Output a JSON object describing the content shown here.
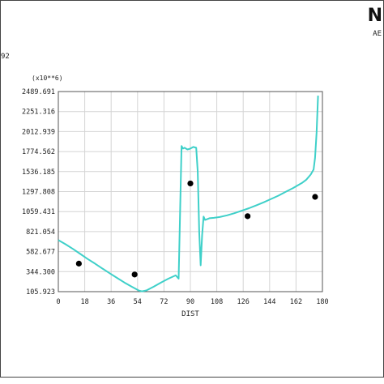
{
  "header": {
    "logo_text": "N",
    "subtitle_fragment": "AE",
    "left_number_fragment": "92"
  },
  "colors": {
    "curve": "#3fd0c9",
    "points": "#000000",
    "grid": "#d4d4d4",
    "axis": "#555555"
  },
  "chart_data": {
    "type": "line",
    "xlabel": "DIST",
    "ylabel": "",
    "multiplier_label": "(x10**6)",
    "xlim": [
      0,
      180
    ],
    "ylim": [
      105.923,
      2489.691
    ],
    "x_ticks": [
      "0",
      "18",
      "36",
      "54",
      "72",
      "90",
      "108",
      "126",
      "144",
      "162",
      "180"
    ],
    "y_ticks": [
      "105.923",
      "344.300",
      "582.677",
      "821.054",
      "1059.431",
      "1297.808",
      "1536.185",
      "1774.562",
      "2012.939",
      "2251.316",
      "2489.691"
    ],
    "grid": true,
    "series": [
      {
        "kind": "line",
        "x": [
          0,
          5,
          10,
          15,
          20,
          25,
          30,
          35,
          40,
          45,
          50,
          55,
          57,
          60,
          65,
          70,
          75,
          80,
          82,
          84,
          85,
          86,
          88,
          90,
          92,
          94,
          95,
          96,
          97,
          98,
          99,
          100,
          103,
          106,
          110,
          115,
          120,
          125,
          130,
          135,
          140,
          145,
          150,
          155,
          160,
          163,
          166,
          169,
          172,
          174,
          175,
          176,
          177
        ],
        "y": [
          720,
          670,
          615,
          555,
          495,
          440,
          382,
          325,
          270,
          215,
          165,
          118,
          110,
          120,
          165,
          215,
          260,
          300,
          260,
          1840,
          1810,
          1820,
          1800,
          1810,
          1830,
          1820,
          1530,
          820,
          420,
          780,
          1000,
          960,
          980,
          985,
          995,
          1015,
          1040,
          1070,
          1100,
          1135,
          1170,
          1210,
          1250,
          1295,
          1340,
          1370,
          1400,
          1440,
          1500,
          1560,
          1700,
          2000,
          2440
        ]
      },
      {
        "kind": "points",
        "x": [
          14,
          52,
          90,
          129,
          175
        ],
        "y": [
          440,
          310,
          1395,
          1005,
          1235
        ]
      }
    ]
  }
}
